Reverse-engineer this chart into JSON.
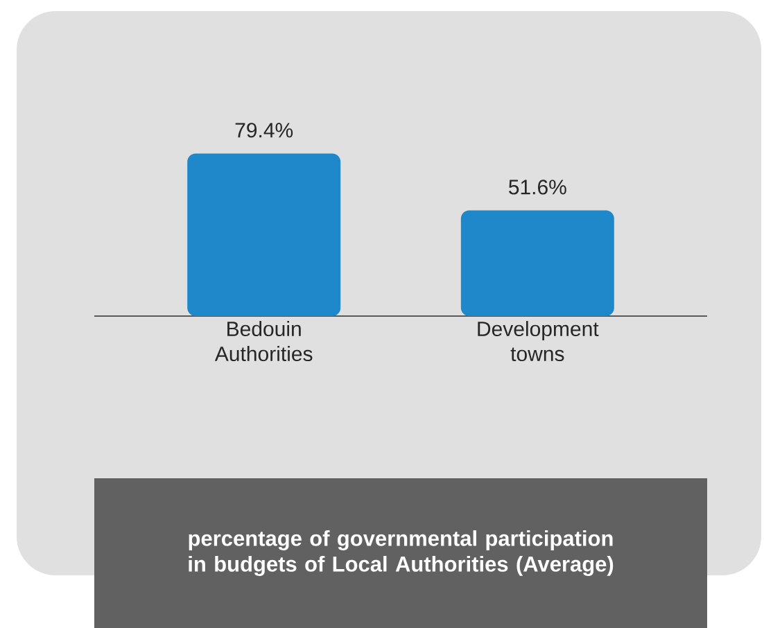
{
  "chart_data": {
    "type": "bar",
    "title": "percentage of governmental participation in budgets of Local Authorities (Average)",
    "categories": [
      "Bedouin Authorities",
      "Development towns"
    ],
    "values": [
      79.4,
      51.6
    ],
    "value_labels": [
      "79.4%",
      "51.6%"
    ],
    "color": "#1e88cb"
  }
}
